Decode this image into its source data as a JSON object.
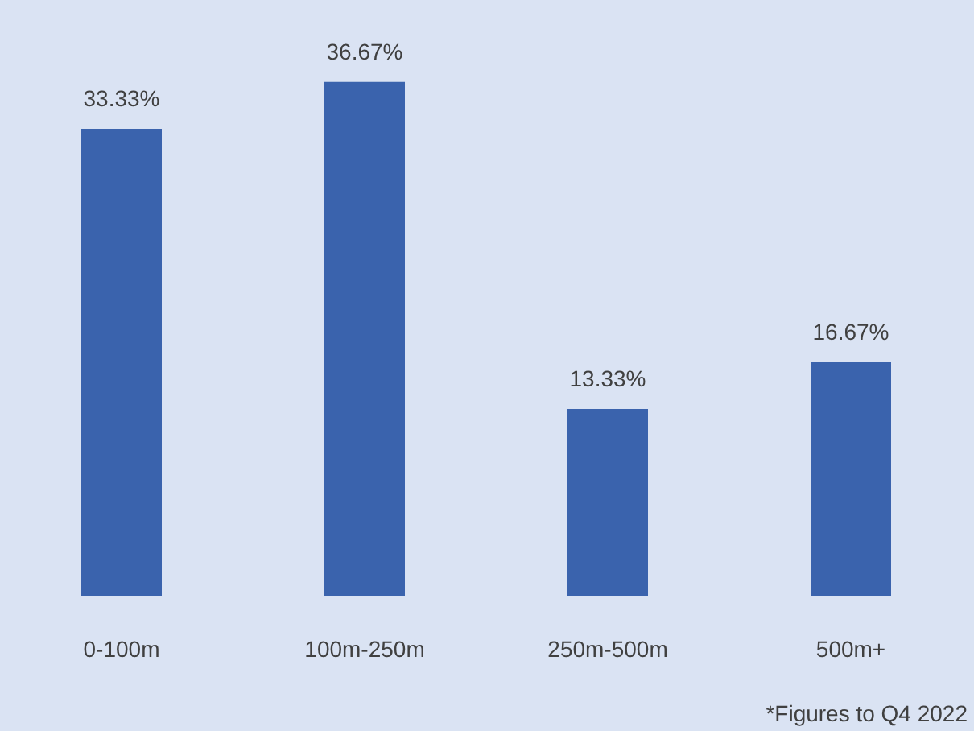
{
  "chart_data": {
    "type": "bar",
    "categories": [
      "0-100m",
      "100m-250m",
      "250m-500m",
      "500m+"
    ],
    "values": [
      33.33,
      36.67,
      13.33,
      16.67
    ],
    "value_labels": [
      "33.33%",
      "36.67%",
      "13.33%",
      "16.67%"
    ],
    "color": "#3a63ad",
    "annotations": [
      "*Figures to Q4 2022"
    ]
  }
}
